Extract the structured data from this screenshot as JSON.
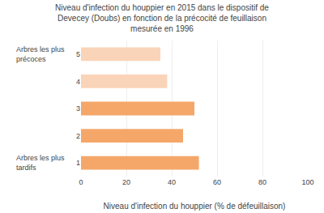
{
  "chart_data": {
    "type": "bar",
    "orientation": "horizontal",
    "title": "Niveau d'infection du houppier en 2015 dans le dispositif de\nDevecey (Doubs) en fonction de la précocité de feuillaison\nmesurée en 1996",
    "xlabel": "Niveau d'infection du houppier (% de défeuillaison)",
    "categories": [
      1,
      2,
      3,
      4,
      5
    ],
    "values": [
      52,
      45,
      50,
      38,
      35
    ],
    "colors": [
      "#F5A76A",
      "#F5A76A",
      "#F5A76A",
      "#FAD4B8",
      "#FAD4B8"
    ],
    "xlim": [
      0,
      100
    ],
    "xticks": [
      0,
      20,
      40,
      60,
      80,
      100
    ],
    "grid": true,
    "annotations": [
      {
        "text": "Arbres les plus\nprécoces",
        "y": 5
      },
      {
        "text": "Arbres les plus\ntardifs",
        "y": 1
      }
    ]
  }
}
